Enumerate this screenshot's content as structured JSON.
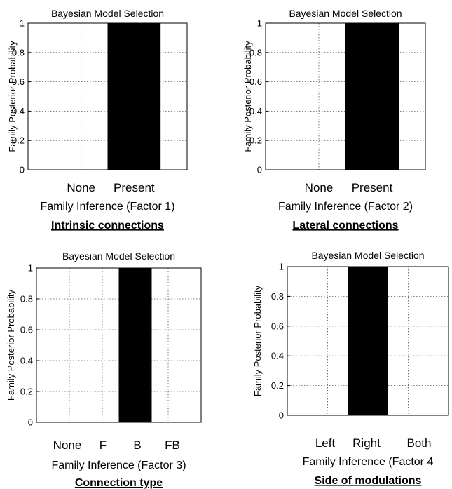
{
  "chart_data": [
    {
      "type": "bar",
      "title": "Bayesian Model Selection",
      "ylabel": "Family Posterior Probability",
      "xlabel": "Family Inference (Factor 1)",
      "caption": "Intrinsic connections",
      "categories": [
        "None",
        "Present"
      ],
      "values": [
        0,
        1
      ],
      "yticks": [
        "0",
        "0.2",
        "0.4",
        "0.6",
        "0.8",
        "1"
      ],
      "ylim": [
        0,
        1
      ],
      "grid": true,
      "bar_color": "#000000"
    },
    {
      "type": "bar",
      "title": "Bayesian Model Selection",
      "ylabel": "Family Posterior Probability",
      "xlabel": "Family Inference (Factor 2)",
      "caption": "Lateral connections",
      "categories": [
        "None",
        "Present"
      ],
      "values": [
        0,
        1
      ],
      "yticks": [
        "0",
        "0.2",
        "0.4",
        "0.6",
        "0.8",
        "1"
      ],
      "ylim": [
        0,
        1
      ],
      "grid": true,
      "bar_color": "#000000"
    },
    {
      "type": "bar",
      "title": "Bayesian Model Selection",
      "ylabel": "Family Posterior Probability",
      "xlabel": "Family Inference (Factor 3)",
      "caption": "Connection type",
      "categories": [
        "None",
        "F",
        "B",
        "FB"
      ],
      "values": [
        0,
        0,
        1,
        0
      ],
      "yticks": [
        "0",
        "0.2",
        "0.4",
        "0.6",
        "0.8",
        "1"
      ],
      "ylim": [
        0,
        1
      ],
      "grid": true,
      "bar_color": "#000000"
    },
    {
      "type": "bar",
      "title": "Bayesian Model Selection",
      "ylabel": "Family Posterior Probability",
      "xlabel": "Family Inference (Factor 4",
      "caption": "Side of modulations",
      "categories": [
        "Left",
        "Right",
        "Both"
      ],
      "values": [
        0,
        1,
        0
      ],
      "yticks": [
        "0",
        "0.2",
        "0.4",
        "0.6",
        "0.8",
        "1"
      ],
      "ylim": [
        0,
        1
      ],
      "grid": true,
      "bar_color": "#000000"
    }
  ]
}
